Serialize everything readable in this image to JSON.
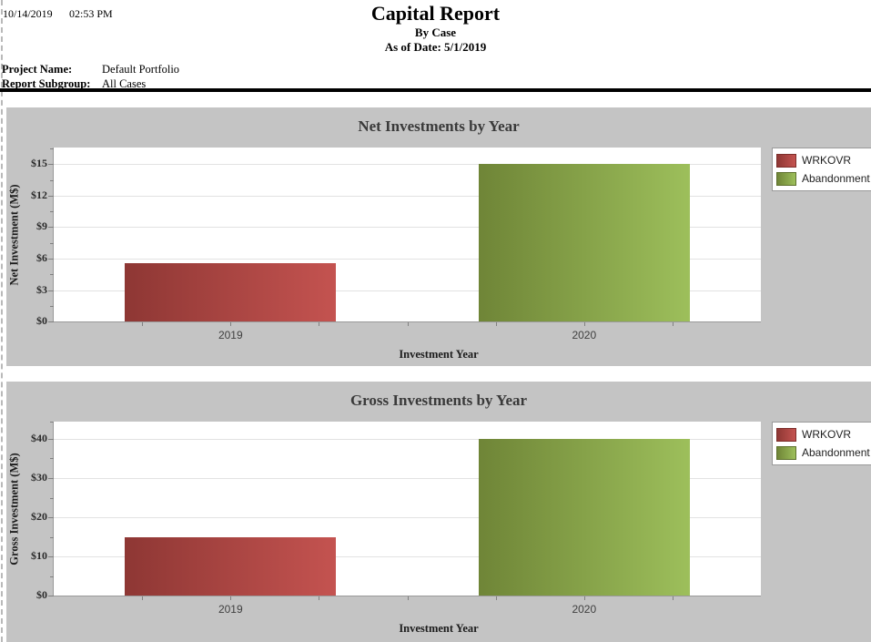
{
  "report": {
    "date": "10/14/2019",
    "time": "02:53 PM",
    "title": "Capital Report",
    "subtitle": "By Case",
    "as_of_date": "As of Date: 5/1/2019",
    "project_name_label": "Project Name:",
    "project_name_value": "Default Portfolio",
    "report_subgroup_label": "Report Subgroup:",
    "report_subgroup_value": "All Cases"
  },
  "colors": {
    "panel_bg": "#c4c4c4",
    "plot_bg": "#ffffff",
    "gridline": "#e2e2e2",
    "axis_line": "#999999",
    "tick": "#808080",
    "title_text": "#3a3a3a",
    "tick_label_text": "#2a2a2a",
    "category_label_text": "#404040",
    "legend_border": "#9a9a9a",
    "legend_text": "#1f1f1f",
    "series": {
      "red": {
        "dark": "#8e3734",
        "light": "#c45350",
        "border": "#7c2d2a"
      },
      "green": {
        "dark": "#6f8537",
        "light": "#9dbf5b",
        "border": "#5d702c"
      }
    }
  },
  "chart_data": [
    {
      "type": "bar",
      "title": "Net Investments by Year",
      "xlabel": "Investment Year",
      "ylabel": "Net Investment (M$)",
      "categories": [
        "2019",
        "2020"
      ],
      "series": [
        {
          "name": "WRKOVR",
          "color": "red",
          "values": [
            5.6,
            0
          ]
        },
        {
          "name": "Abandonment",
          "color": "green",
          "values": [
            0,
            15
          ]
        }
      ],
      "yticks": [
        {
          "value": 0,
          "label": "$0"
        },
        {
          "value": 3,
          "label": "$3"
        },
        {
          "value": 6,
          "label": "$6"
        },
        {
          "value": 9,
          "label": "$9"
        },
        {
          "value": 12,
          "label": "$12"
        },
        {
          "value": 15,
          "label": "$15"
        }
      ],
      "ylim": [
        0,
        16.6
      ],
      "grid": true,
      "legend_position": "top-right",
      "legend": [
        "WRKOVR",
        "Abandonment"
      ]
    },
    {
      "type": "bar",
      "title": "Gross Investments by Year",
      "xlabel": "Investment Year",
      "ylabel": "Gross Investment (M$)",
      "categories": [
        "2019",
        "2020"
      ],
      "series": [
        {
          "name": "WRKOVR",
          "color": "red",
          "values": [
            15,
            0
          ]
        },
        {
          "name": "Abandonment",
          "color": "green",
          "values": [
            0,
            40
          ]
        }
      ],
      "yticks": [
        {
          "value": 0,
          "label": "$0"
        },
        {
          "value": 10,
          "label": "$10"
        },
        {
          "value": 20,
          "label": "$20"
        },
        {
          "value": 30,
          "label": "$30"
        },
        {
          "value": 40,
          "label": "$40"
        }
      ],
      "ylim": [
        0,
        44.4
      ],
      "grid": true,
      "legend_position": "top-right",
      "legend": [
        "WRKOVR",
        "Abandonment"
      ]
    }
  ]
}
